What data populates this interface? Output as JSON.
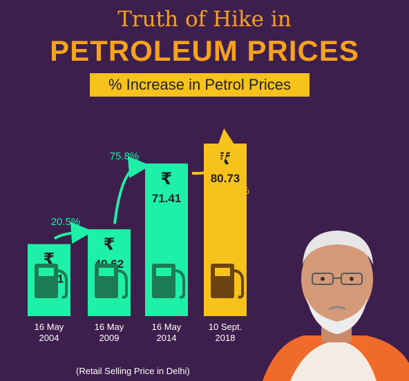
{
  "title_line1": "Truth of Hike in",
  "title_line2": "PETROLEUM PRICES",
  "subtitle": "% Increase in Petrol Prices",
  "footnote": "(Retail Selling Price in Delhi)",
  "chart_data": {
    "type": "bar",
    "categories": [
      "16 May\n2004",
      "16 May\n2009",
      "16 May\n2014",
      "10 Sept.\n2018"
    ],
    "values": [
      33.71,
      40.62,
      71.41,
      80.73
    ],
    "value_labels": [
      "33.71",
      "40.62",
      "71.41",
      "80.73"
    ],
    "currency_symbol": "₹",
    "increase_labels": [
      "20.5%",
      "75.8%",
      "13%"
    ],
    "title": "% Increase in Petrol Prices",
    "xlabel": "",
    "ylabel": "",
    "colors": {
      "bar_default": "#1ef0a8",
      "bar_highlight": "#f7c21b",
      "pump_default": "#1c7a55",
      "pump_highlight": "#6b4411",
      "arrow_up": "#1ef0a8",
      "arrow_down": "#f7c21b"
    }
  },
  "colors": {
    "background": "#3d1f4d",
    "accent": "#f7a21b",
    "subtitle_box": "#f7c21b"
  }
}
